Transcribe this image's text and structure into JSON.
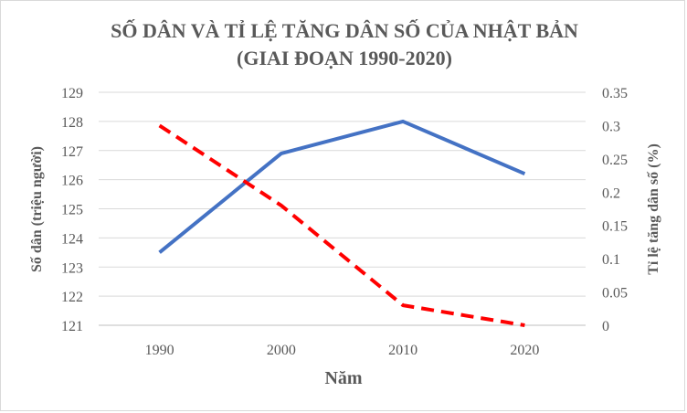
{
  "chart_data": {
    "type": "line",
    "title_line1": "SỐ DÂN VÀ TỈ LỆ TĂNG DÂN SỐ CỦA NHẬT BẢN",
    "title_line2": "(GIAI ĐOẠN 1990-2020)",
    "xlabel": "Năm",
    "ylabel_left": "Số dân (triệu người)",
    "ylabel_right": "Tỉ lệ tăng dân số (%)",
    "categories": [
      "1990",
      "2000",
      "2010",
      "2020"
    ],
    "y_left": {
      "min": 121,
      "max": 129,
      "step": 1,
      "ticks": [
        "121",
        "122",
        "123",
        "124",
        "125",
        "126",
        "127",
        "128",
        "129"
      ]
    },
    "y_right": {
      "min": 0,
      "max": 0.35,
      "step": 0.05,
      "ticks": [
        "0",
        "0.05",
        "0.1",
        "0.15",
        "0.2",
        "0.25",
        "0.3",
        "0.35"
      ]
    },
    "grid": true,
    "series": [
      {
        "axis": "left",
        "color": "#4472c4",
        "style": "solid",
        "values": [
          123.5,
          126.9,
          128.0,
          126.2
        ]
      },
      {
        "axis": "right",
        "color": "#ff0000",
        "style": "dashed",
        "values": [
          0.3,
          0.18,
          0.03,
          0.0
        ]
      }
    ]
  }
}
